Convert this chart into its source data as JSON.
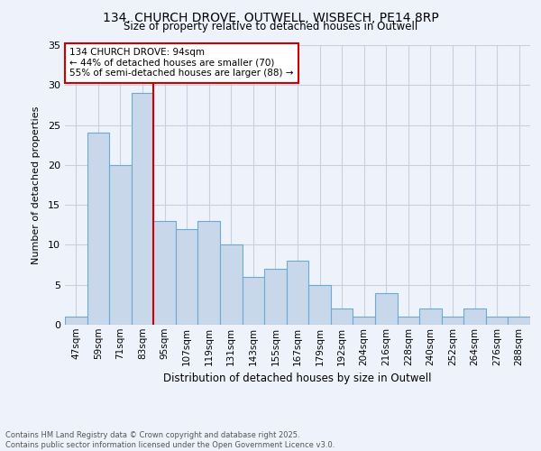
{
  "title1": "134, CHURCH DROVE, OUTWELL, WISBECH, PE14 8RP",
  "title2": "Size of property relative to detached houses in Outwell",
  "xlabel": "Distribution of detached houses by size in Outwell",
  "ylabel": "Number of detached properties",
  "footer": "Contains HM Land Registry data © Crown copyright and database right 2025.\nContains public sector information licensed under the Open Government Licence v3.0.",
  "bins": [
    "47sqm",
    "59sqm",
    "71sqm",
    "83sqm",
    "95sqm",
    "107sqm",
    "119sqm",
    "131sqm",
    "143sqm",
    "155sqm",
    "167sqm",
    "179sqm",
    "192sqm",
    "204sqm",
    "216sqm",
    "228sqm",
    "240sqm",
    "252sqm",
    "264sqm",
    "276sqm",
    "288sqm"
  ],
  "values": [
    1,
    24,
    20,
    29,
    13,
    12,
    13,
    10,
    6,
    7,
    8,
    5,
    2,
    1,
    4,
    1,
    2,
    1,
    2,
    1,
    1
  ],
  "bar_color": "#c8d8ea",
  "bar_edge_color": "#6aaad4",
  "highlight_line_index": 3,
  "annotation_text": "134 CHURCH DROVE: 94sqm\n← 44% of detached houses are smaller (70)\n55% of semi-detached houses are larger (88) →",
  "annotation_box_color": "#ffffff",
  "annotation_box_edge": "#cc0000",
  "highlight_line_color": "#cc0000",
  "ylim": [
    0,
    35
  ],
  "yticks": [
    0,
    5,
    10,
    15,
    20,
    25,
    30,
    35
  ],
  "bg_color": "#eef2fb",
  "grid_color": "#c8cfe0"
}
